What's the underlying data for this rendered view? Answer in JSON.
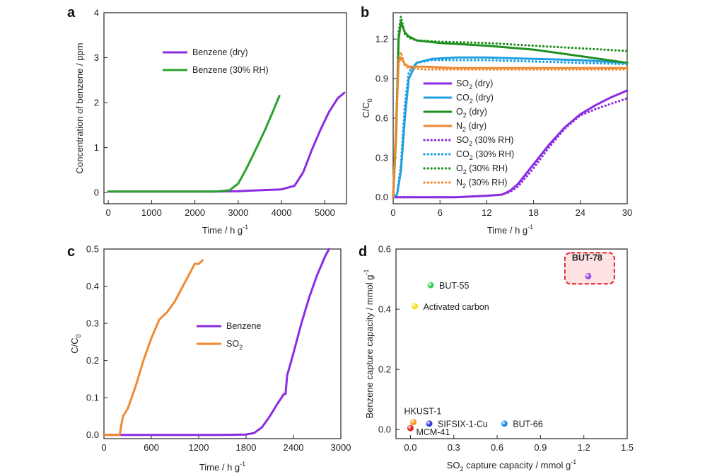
{
  "chart_data": [
    {
      "panel": "a",
      "type": "line",
      "xlabel": "Time / h g",
      "xlabel_sup": "-1",
      "ylabel": "Concentration of benzene / ppm",
      "xlim": [
        -100,
        5500
      ],
      "ylim": [
        -0.25,
        4
      ],
      "xticks": [
        "0",
        "1000",
        "2000",
        "3000",
        "4000",
        "5000"
      ],
      "yticks": [
        "0",
        "1",
        "2",
        "3",
        "4"
      ],
      "series": [
        {
          "name": "Benzene (dry)",
          "color": "#8a2be2",
          "x": [
            0,
            500,
            1000,
            1500,
            2000,
            2500,
            3000,
            3500,
            4000,
            4300,
            4500,
            4700,
            4900,
            5100,
            5300,
            5450
          ],
          "y": [
            0.02,
            0.02,
            0.02,
            0.02,
            0.02,
            0.02,
            0.03,
            0.05,
            0.07,
            0.15,
            0.45,
            0.95,
            1.4,
            1.8,
            2.1,
            2.22
          ]
        },
        {
          "name": "Benzene (30% RH)",
          "color": "#2ca02c",
          "x": [
            0,
            500,
            1000,
            1500,
            2000,
            2500,
            2800,
            3000,
            3200,
            3400,
            3600,
            3800,
            3950
          ],
          "y": [
            0.02,
            0.02,
            0.02,
            0.02,
            0.02,
            0.02,
            0.05,
            0.2,
            0.55,
            0.95,
            1.35,
            1.8,
            2.15
          ]
        }
      ]
    },
    {
      "panel": "b",
      "type": "line",
      "xlabel": "Time / h g",
      "xlabel_sup": "-1",
      "ylabel": "C/C",
      "ylabel_sub": "0",
      "xlim": [
        0,
        30
      ],
      "ylim": [
        -0.05,
        1.4
      ],
      "xticks": [
        "0",
        "6",
        "12",
        "18",
        "24",
        "30"
      ],
      "yticks": [
        "0.0",
        "0.3",
        "0.6",
        "0.9",
        "1.2"
      ],
      "series": [
        {
          "name": "SO",
          "sub": "2",
          "cond": " (dry)",
          "style": "solid",
          "color": "#8a2be2",
          "x": [
            0,
            4,
            8,
            12,
            14,
            15,
            16,
            18,
            20,
            22,
            24,
            26,
            28,
            30
          ],
          "y": [
            0.0,
            0.0,
            0.0,
            0.01,
            0.02,
            0.05,
            0.1,
            0.25,
            0.4,
            0.53,
            0.63,
            0.7,
            0.76,
            0.81
          ]
        },
        {
          "name": "CO",
          "sub": "2",
          "cond": " (dry)",
          "style": "solid",
          "color": "#1e9fe0",
          "x": [
            0,
            0.5,
            1,
            1.5,
            2,
            3,
            5,
            8,
            12,
            18,
            24,
            30
          ],
          "y": [
            0.0,
            0.02,
            0.2,
            0.6,
            0.9,
            1.02,
            1.05,
            1.06,
            1.06,
            1.05,
            1.04,
            1.02
          ]
        },
        {
          "name": "O",
          "sub": "2",
          "cond": " (dry)",
          "style": "solid",
          "color": "#1f8f1f",
          "x": [
            0,
            0.4,
            0.7,
            1,
            1.5,
            2,
            3,
            6,
            12,
            18,
            24,
            30
          ],
          "y": [
            0.0,
            0.5,
            1.2,
            1.33,
            1.25,
            1.22,
            1.19,
            1.17,
            1.15,
            1.12,
            1.07,
            1.02
          ]
        },
        {
          "name": "N",
          "sub": "2",
          "cond": " (dry)",
          "style": "solid",
          "color": "#ef8a33",
          "x": [
            0,
            0.4,
            0.7,
            1,
            1.5,
            2,
            4,
            8,
            15,
            22,
            30
          ],
          "y": [
            0.0,
            0.6,
            1.02,
            1.06,
            1.01,
            0.99,
            0.99,
            0.98,
            0.98,
            0.98,
            0.98
          ]
        },
        {
          "name": "SO",
          "sub": "2",
          "cond": " (30% RH)",
          "style": "dotted",
          "color": "#8a2be2",
          "x": [
            0,
            4,
            8,
            12,
            14,
            15,
            16,
            18,
            20,
            22,
            24,
            26,
            28,
            30
          ],
          "y": [
            0.0,
            0.0,
            0.0,
            0.01,
            0.02,
            0.04,
            0.08,
            0.22,
            0.38,
            0.52,
            0.62,
            0.67,
            0.71,
            0.75
          ]
        },
        {
          "name": "CO",
          "sub": "2",
          "cond": " (30% RH)",
          "style": "dotted",
          "color": "#1e9fe0",
          "x": [
            0,
            0.5,
            1,
            1.5,
            2,
            3,
            5,
            8,
            12,
            18,
            24,
            30
          ],
          "y": [
            0.0,
            0.02,
            0.25,
            0.7,
            0.95,
            1.02,
            1.04,
            1.04,
            1.04,
            1.03,
            1.02,
            1.01
          ]
        },
        {
          "name": "O",
          "sub": "2",
          "cond": " (30% RH)",
          "style": "dotted",
          "color": "#1f8f1f",
          "x": [
            0,
            0.4,
            0.7,
            1,
            1.5,
            2,
            3,
            6,
            12,
            18,
            24,
            30
          ],
          "y": [
            0.0,
            0.5,
            1.25,
            1.37,
            1.24,
            1.21,
            1.19,
            1.18,
            1.17,
            1.15,
            1.13,
            1.11
          ]
        },
        {
          "name": "N",
          "sub": "2",
          "cond": " (30% RH)",
          "style": "dotted",
          "color": "#ef8a33",
          "x": [
            0,
            0.4,
            0.7,
            1,
            1.5,
            2,
            4,
            8,
            15,
            22,
            30
          ],
          "y": [
            0.0,
            0.5,
            1.05,
            1.1,
            1.0,
            0.98,
            0.97,
            0.97,
            0.97,
            0.97,
            0.97
          ]
        }
      ]
    },
    {
      "panel": "c",
      "type": "line",
      "xlabel": "Time / h g",
      "xlabel_sup": "-1",
      "ylabel": "C/C",
      "ylabel_sub": "0",
      "xlim": [
        0,
        3000
      ],
      "ylim": [
        -0.01,
        0.5
      ],
      "xticks": [
        "0",
        "600",
        "1200",
        "1800",
        "2400",
        "3000"
      ],
      "yticks": [
        "0.0",
        "0.1",
        "0.2",
        "0.3",
        "0.4",
        "0.5"
      ],
      "series": [
        {
          "name": "Benzene",
          "color": "#8a2be2",
          "x": [
            0,
            500,
            1000,
            1500,
            1800,
            1900,
            2000,
            2100,
            2200,
            2280,
            2300,
            2320,
            2400,
            2500,
            2600,
            2700,
            2800,
            2850
          ],
          "y": [
            0.0,
            0.0,
            0.0,
            0.0,
            0.001,
            0.005,
            0.02,
            0.05,
            0.085,
            0.11,
            0.11,
            0.16,
            0.22,
            0.3,
            0.37,
            0.43,
            0.48,
            0.5
          ]
        },
        {
          "name": "SO",
          "sub": "2",
          "color": "#ef8a33",
          "x": [
            0,
            100,
            200,
            215,
            240,
            300,
            400,
            500,
            600,
            700,
            800,
            900,
            1000,
            1100,
            1150,
            1200,
            1250
          ],
          "y": [
            0.0,
            0.0,
            0.0,
            0.02,
            0.05,
            0.07,
            0.13,
            0.2,
            0.26,
            0.31,
            0.33,
            0.36,
            0.4,
            0.44,
            0.46,
            0.46,
            0.47
          ]
        }
      ]
    },
    {
      "panel": "d",
      "type": "scatter",
      "xlabel": "SO",
      "xlabel_sub": "2",
      "xlabel_rest": " capture capacity / mmol g",
      "xlabel_sup": "-1",
      "ylabel": "Benzene capture capacity / mmol g",
      "ylabel_sup": "-1",
      "xlim": [
        -0.1,
        1.5
      ],
      "ylim": [
        -0.03,
        0.6
      ],
      "xticks": [
        "0.0",
        "0.3",
        "0.6",
        "0.9",
        "1.2",
        "1.5"
      ],
      "yticks": [
        "0.0",
        "0.2",
        "0.4",
        "0.6"
      ],
      "points": [
        {
          "label": "BUT-78",
          "x": 1.23,
          "y": 0.51,
          "color": "#9c4ee8",
          "highlight": true
        },
        {
          "label": "BUT-55",
          "x": 0.14,
          "y": 0.48,
          "color": "#3fcf5a"
        },
        {
          "label": "Activated carbon",
          "x": 0.03,
          "y": 0.41,
          "color": "#f2e21a"
        },
        {
          "label": "HKUST-1",
          "x": 0.02,
          "y": 0.025,
          "color": "#f39a1a"
        },
        {
          "label": "SIFSIX-1-Cu",
          "x": 0.13,
          "y": 0.02,
          "color": "#3b3bd6"
        },
        {
          "label": "BUT-66",
          "x": 0.65,
          "y": 0.02,
          "color": "#1f8fe0"
        },
        {
          "label": "MCM-41",
          "x": 0.0,
          "y": 0.005,
          "color": "#e8202a"
        }
      ]
    }
  ]
}
